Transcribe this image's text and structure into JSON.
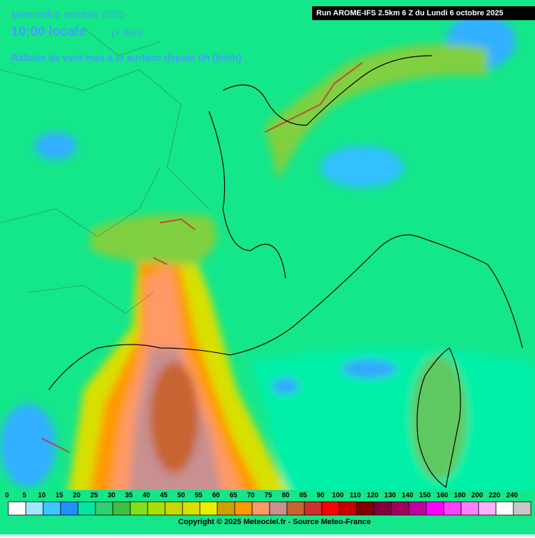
{
  "header": {
    "date": "Mercredi 8 octobre 2025",
    "time": "10:00 locale",
    "lead": "(+ 50h)",
    "subtitle": "Rafales de vent max à la surface depuis 0h (km/h)",
    "run": "Run AROME-IFS 2.5km 6 Z du Lundi 6 octobre 2025"
  },
  "legend": {
    "labels": [
      0,
      5,
      10,
      15,
      20,
      25,
      30,
      35,
      40,
      45,
      50,
      55,
      60,
      65,
      70,
      75,
      80,
      85,
      90,
      100,
      110,
      120,
      130,
      140,
      150,
      160,
      180,
      200,
      220,
      240
    ],
    "colors": [
      "#ffffff",
      "#a0e6ff",
      "#3cc8ff",
      "#1e90ff",
      "#00e6a0",
      "#30d070",
      "#40c040",
      "#80e020",
      "#a8e000",
      "#c8d800",
      "#d8e000",
      "#e8f000",
      "#d0a000",
      "#ff9900",
      "#ff9966",
      "#c89090",
      "#c86432",
      "#d03030",
      "#ff0000",
      "#c80000",
      "#800000",
      "#800040",
      "#a00060",
      "#c000a0",
      "#ff00ff",
      "#ff40ff",
      "#ff80ff",
      "#ffb0ff",
      "#ffffff",
      "#c8c8c8"
    ]
  },
  "footer": {
    "copyright": "Copyright © 2025 Meteociel.fr - Source Meteo-France"
  }
}
